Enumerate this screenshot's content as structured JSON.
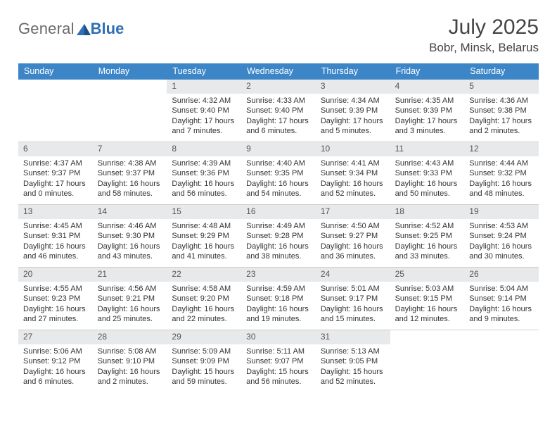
{
  "logo": {
    "text1": "General",
    "text2": "Blue"
  },
  "header": {
    "month_title": "July 2025",
    "location": "Bobr, Minsk, Belarus"
  },
  "colors": {
    "header_bar": "#3c86c8",
    "header_text": "#ffffff",
    "daynum_bg": "#e7e9ea",
    "grid_border": "#cfcfcf",
    "body_text": "#333333",
    "logo_general": "#6a6a6a",
    "logo_blue": "#2e6fb5"
  },
  "dow": [
    "Sunday",
    "Monday",
    "Tuesday",
    "Wednesday",
    "Thursday",
    "Friday",
    "Saturday"
  ],
  "weeks": [
    [
      null,
      null,
      {
        "n": "1",
        "sr": "4:32 AM",
        "ss": "9:40 PM",
        "dl": "17 hours and 7 minutes."
      },
      {
        "n": "2",
        "sr": "4:33 AM",
        "ss": "9:40 PM",
        "dl": "17 hours and 6 minutes."
      },
      {
        "n": "3",
        "sr": "4:34 AM",
        "ss": "9:39 PM",
        "dl": "17 hours and 5 minutes."
      },
      {
        "n": "4",
        "sr": "4:35 AM",
        "ss": "9:39 PM",
        "dl": "17 hours and 3 minutes."
      },
      {
        "n": "5",
        "sr": "4:36 AM",
        "ss": "9:38 PM",
        "dl": "17 hours and 2 minutes."
      }
    ],
    [
      {
        "n": "6",
        "sr": "4:37 AM",
        "ss": "9:37 PM",
        "dl": "17 hours and 0 minutes."
      },
      {
        "n": "7",
        "sr": "4:38 AM",
        "ss": "9:37 PM",
        "dl": "16 hours and 58 minutes."
      },
      {
        "n": "8",
        "sr": "4:39 AM",
        "ss": "9:36 PM",
        "dl": "16 hours and 56 minutes."
      },
      {
        "n": "9",
        "sr": "4:40 AM",
        "ss": "9:35 PM",
        "dl": "16 hours and 54 minutes."
      },
      {
        "n": "10",
        "sr": "4:41 AM",
        "ss": "9:34 PM",
        "dl": "16 hours and 52 minutes."
      },
      {
        "n": "11",
        "sr": "4:43 AM",
        "ss": "9:33 PM",
        "dl": "16 hours and 50 minutes."
      },
      {
        "n": "12",
        "sr": "4:44 AM",
        "ss": "9:32 PM",
        "dl": "16 hours and 48 minutes."
      }
    ],
    [
      {
        "n": "13",
        "sr": "4:45 AM",
        "ss": "9:31 PM",
        "dl": "16 hours and 46 minutes."
      },
      {
        "n": "14",
        "sr": "4:46 AM",
        "ss": "9:30 PM",
        "dl": "16 hours and 43 minutes."
      },
      {
        "n": "15",
        "sr": "4:48 AM",
        "ss": "9:29 PM",
        "dl": "16 hours and 41 minutes."
      },
      {
        "n": "16",
        "sr": "4:49 AM",
        "ss": "9:28 PM",
        "dl": "16 hours and 38 minutes."
      },
      {
        "n": "17",
        "sr": "4:50 AM",
        "ss": "9:27 PM",
        "dl": "16 hours and 36 minutes."
      },
      {
        "n": "18",
        "sr": "4:52 AM",
        "ss": "9:25 PM",
        "dl": "16 hours and 33 minutes."
      },
      {
        "n": "19",
        "sr": "4:53 AM",
        "ss": "9:24 PM",
        "dl": "16 hours and 30 minutes."
      }
    ],
    [
      {
        "n": "20",
        "sr": "4:55 AM",
        "ss": "9:23 PM",
        "dl": "16 hours and 27 minutes."
      },
      {
        "n": "21",
        "sr": "4:56 AM",
        "ss": "9:21 PM",
        "dl": "16 hours and 25 minutes."
      },
      {
        "n": "22",
        "sr": "4:58 AM",
        "ss": "9:20 PM",
        "dl": "16 hours and 22 minutes."
      },
      {
        "n": "23",
        "sr": "4:59 AM",
        "ss": "9:18 PM",
        "dl": "16 hours and 19 minutes."
      },
      {
        "n": "24",
        "sr": "5:01 AM",
        "ss": "9:17 PM",
        "dl": "16 hours and 15 minutes."
      },
      {
        "n": "25",
        "sr": "5:03 AM",
        "ss": "9:15 PM",
        "dl": "16 hours and 12 minutes."
      },
      {
        "n": "26",
        "sr": "5:04 AM",
        "ss": "9:14 PM",
        "dl": "16 hours and 9 minutes."
      }
    ],
    [
      {
        "n": "27",
        "sr": "5:06 AM",
        "ss": "9:12 PM",
        "dl": "16 hours and 6 minutes."
      },
      {
        "n": "28",
        "sr": "5:08 AM",
        "ss": "9:10 PM",
        "dl": "16 hours and 2 minutes."
      },
      {
        "n": "29",
        "sr": "5:09 AM",
        "ss": "9:09 PM",
        "dl": "15 hours and 59 minutes."
      },
      {
        "n": "30",
        "sr": "5:11 AM",
        "ss": "9:07 PM",
        "dl": "15 hours and 56 minutes."
      },
      {
        "n": "31",
        "sr": "5:13 AM",
        "ss": "9:05 PM",
        "dl": "15 hours and 52 minutes."
      },
      null,
      null
    ]
  ],
  "labels": {
    "sunrise": "Sunrise:",
    "sunset": "Sunset:",
    "daylight": "Daylight:"
  }
}
